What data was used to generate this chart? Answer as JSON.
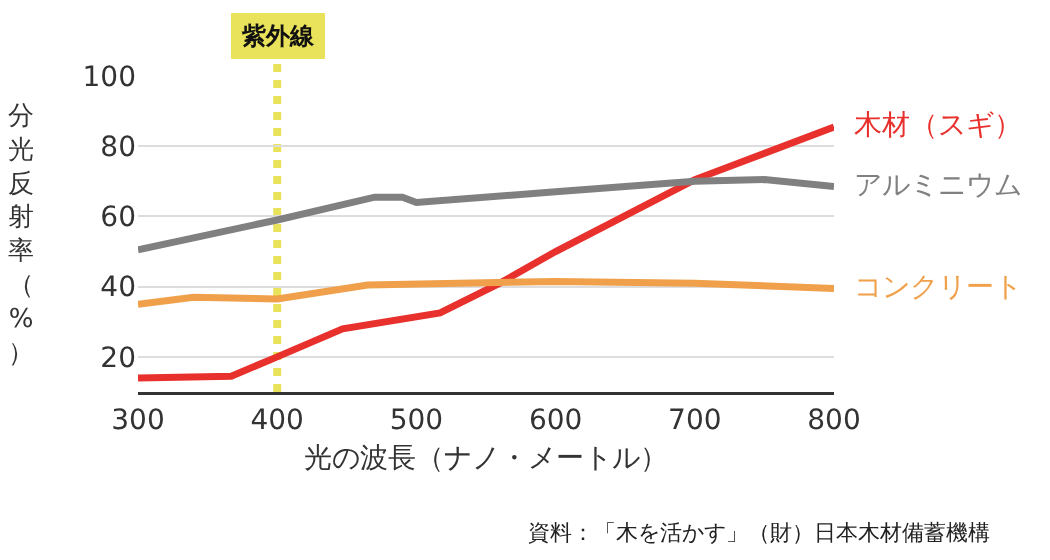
{
  "chart_data": {
    "type": "line",
    "xlabel": "光の波長（ナノ・メートル）",
    "ylabel": "分光反射率（%）",
    "xlim": [
      300,
      800
    ],
    "xticks": [
      300,
      400,
      500,
      600,
      700,
      800
    ],
    "ylim": [
      10,
      100
    ],
    "yticks": [
      20,
      40,
      60,
      80,
      100
    ],
    "grid": "y",
    "legend": false,
    "marker": "none",
    "line_style": "solid",
    "series": [
      {
        "name": "木材（スギ）",
        "color": "#e8312d",
        "x": [
          300,
          367,
          400,
          447,
          517,
          560,
          600,
          700,
          800
        ],
        "values": [
          14,
          14.5,
          20,
          28,
          32.5,
          41,
          50,
          70.5,
          85.5
        ]
      },
      {
        "name": "アルミニウム",
        "color": "#808080",
        "x": [
          300,
          400,
          470,
          490,
          500,
          600,
          700,
          750,
          800
        ],
        "values": [
          50.5,
          59,
          65.5,
          65.5,
          64,
          67,
          70,
          70.5,
          68.5
        ]
      },
      {
        "name": "コンクリート",
        "color": "#f0a04b",
        "x": [
          300,
          340,
          400,
          465,
          600,
          700,
          800
        ],
        "values": [
          35,
          37,
          36.5,
          40.5,
          41.5,
          41,
          39.5
        ]
      }
    ],
    "ref_lines": [
      {
        "axis": "x",
        "value": 400,
        "label": "紫外線",
        "color": "#e8e35a",
        "line_style": "dotted"
      }
    ],
    "annotations": [
      "資料：「木を活かす」（財）日本木材備蓄機構"
    ]
  }
}
